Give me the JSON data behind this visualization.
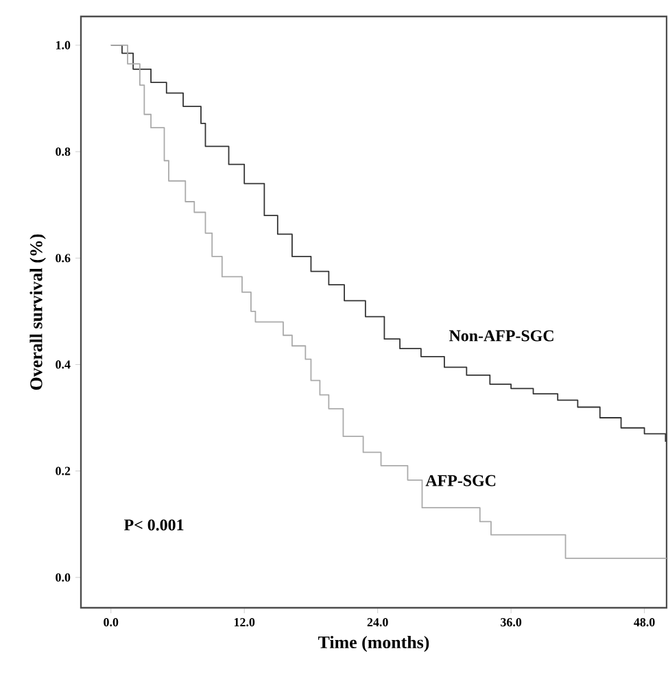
{
  "chart_data": {
    "type": "step",
    "xlabel": "Time (months)",
    "ylabel": "Overall survival (%)",
    "xlim": [
      -2.7,
      50
    ],
    "ylim": [
      -0.057,
      1.054
    ],
    "xticks": [
      {
        "value": 0,
        "label": "0.0"
      },
      {
        "value": 12,
        "label": "12.0"
      },
      {
        "value": 24,
        "label": "24.0"
      },
      {
        "value": 36,
        "label": "36.0"
      },
      {
        "value": 48,
        "label": "48.0"
      }
    ],
    "yticks": [
      {
        "value": 0,
        "label": "0.0"
      },
      {
        "value": 0.2,
        "label": "0.2"
      },
      {
        "value": 0.4,
        "label": "0.4"
      },
      {
        "value": 0.6,
        "label": "0.6"
      },
      {
        "value": 0.8,
        "label": "0.8"
      },
      {
        "value": 1.0,
        "label": "1.0"
      }
    ],
    "series": [
      {
        "name": "Non-AFP-SGC",
        "color": "#333333",
        "x": [
          0,
          1,
          2,
          3.6,
          5,
          6.5,
          8.1,
          8.5,
          10.6,
          12,
          13.8,
          15,
          16.3,
          18,
          19.6,
          21,
          22.9,
          24.6,
          26,
          27.9,
          30,
          32,
          34.1,
          36,
          38,
          40.2,
          42,
          44,
          45.9,
          48,
          49.9
        ],
        "values": [
          1.0,
          0.985,
          0.955,
          0.93,
          0.91,
          0.885,
          0.853,
          0.81,
          0.776,
          0.74,
          0.68,
          0.645,
          0.603,
          0.575,
          0.55,
          0.52,
          0.49,
          0.448,
          0.43,
          0.415,
          0.395,
          0.38,
          0.363,
          0.355,
          0.345,
          0.333,
          0.32,
          0.3,
          0.281,
          0.27,
          0.255
        ]
      },
      {
        "name": "AFP-SGC",
        "color": "#aaaaaa",
        "x": [
          0,
          1.5,
          2.6,
          3.0,
          3.6,
          4.8,
          5.2,
          6.7,
          7.5,
          8.5,
          9.1,
          10.0,
          11.8,
          12.6,
          13.0,
          15.5,
          16.3,
          17.5,
          18.0,
          18.8,
          19.6,
          20.9,
          22.7,
          24.3,
          26.7,
          28.0,
          33.2,
          34.2,
          40.9,
          50.0
        ],
        "values": [
          1.0,
          0.965,
          0.925,
          0.87,
          0.845,
          0.783,
          0.745,
          0.706,
          0.686,
          0.647,
          0.603,
          0.565,
          0.536,
          0.5,
          0.48,
          0.455,
          0.435,
          0.41,
          0.37,
          0.343,
          0.317,
          0.265,
          0.235,
          0.21,
          0.183,
          0.131,
          0.105,
          0.08,
          0.036,
          0.036
        ]
      }
    ],
    "annotations": [
      "P< 0.001"
    ]
  }
}
